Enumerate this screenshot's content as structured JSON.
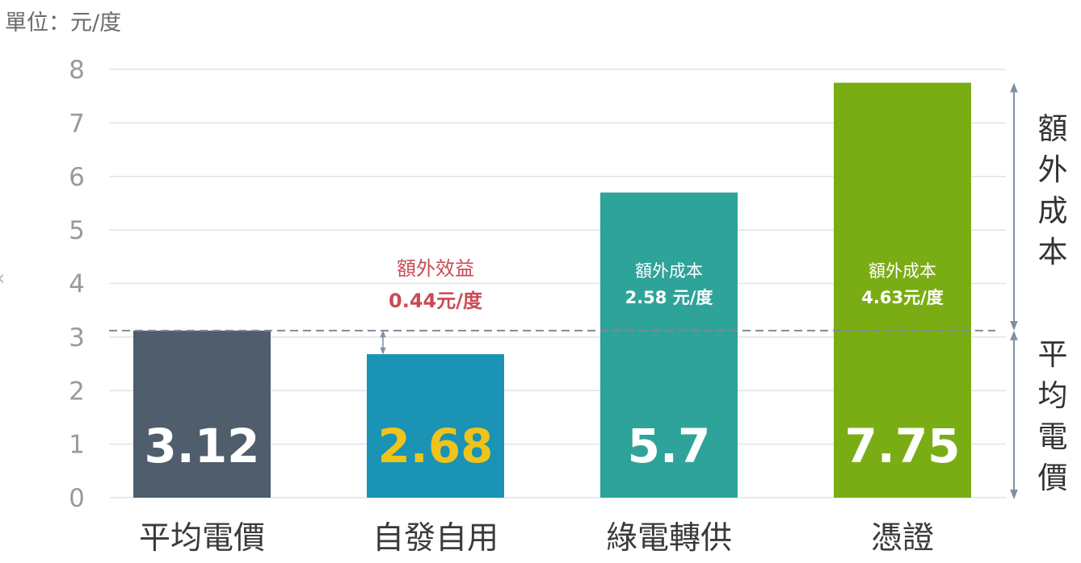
{
  "unit_label": "單位：元/度",
  "colors": {
    "grid": "#dfe3e8",
    "tick": "#9a9a9a",
    "category": "#3a3a3a",
    "avg_line": "#7f8a99",
    "arrow": "#7f8fa6",
    "benefit_text": "#c94b57",
    "cost_text": "#ffffff",
    "side_text": "#333333"
  },
  "chart_data": {
    "type": "bar",
    "title": "",
    "xlabel": "",
    "ylabel": "",
    "ylim": [
      0,
      8
    ],
    "yticks": [
      0,
      1,
      2,
      3,
      4,
      5,
      6,
      7,
      8
    ],
    "grid": true,
    "categories": [
      "平均電價",
      "自發自用",
      "綠電轉供",
      "憑證"
    ],
    "values": [
      3.12,
      2.68,
      5.7,
      7.75
    ],
    "value_labels": [
      "3.12",
      "2.68",
      "5.7",
      "7.75"
    ],
    "bar_colors": [
      "#4f5d6c",
      "#1a93b4",
      "#2ea39a",
      "#7aad14"
    ],
    "value_label_colors": [
      "#ffffff",
      "#f0c31a",
      "#ffffff",
      "#ffffff"
    ],
    "reference_line": {
      "value": 3.12
    },
    "annotations": [
      {
        "category": "自發自用",
        "lines": [
          "額外效益",
          "0.44元/度"
        ],
        "style": "benefit"
      },
      {
        "category": "綠電轉供",
        "lines": [
          "額外成本",
          "2.58 元/度"
        ],
        "style": "cost"
      },
      {
        "category": "憑證",
        "lines": [
          "額外成本",
          "4.63元/度"
        ],
        "style": "cost"
      }
    ],
    "side_labels": [
      {
        "text": "額外成本",
        "from": 3.12,
        "to": 7.75
      },
      {
        "text": "平均電價",
        "from": 0,
        "to": 3.12
      }
    ]
  }
}
